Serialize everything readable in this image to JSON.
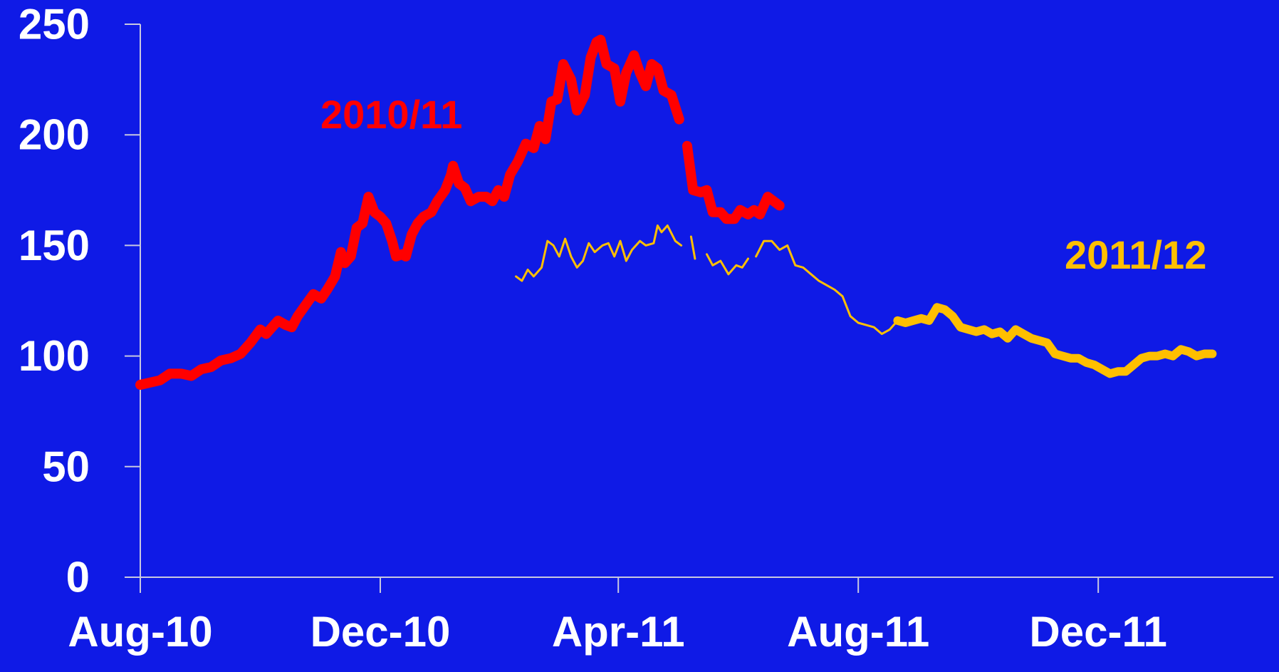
{
  "chart_data": {
    "type": "line",
    "title": "",
    "xlabel": "",
    "ylabel": "",
    "ylim": [
      0,
      250
    ],
    "yticks": [
      0,
      50,
      100,
      150,
      200,
      250
    ],
    "xlim": [
      "2010-08-01",
      "2012-02-28"
    ],
    "xticks": [
      {
        "date": "2010-08-01",
        "label": "Aug-10"
      },
      {
        "date": "2010-12-01",
        "label": "Dec-10"
      },
      {
        "date": "2011-04-01",
        "label": "Apr-11"
      },
      {
        "date": "2011-08-01",
        "label": "Aug-11"
      },
      {
        "date": "2011-12-01",
        "label": "Dec-11"
      }
    ],
    "grid": false,
    "background_color": "#0f1ae6",
    "axis_color": "#c8c8e0",
    "series": [
      {
        "name": "2010/11",
        "color": "#ff0000",
        "segments": [
          [
            [
              "2010-08-01",
              87
            ],
            [
              "2010-08-06",
              88
            ],
            [
              "2010-08-11",
              89
            ],
            [
              "2010-08-16",
              92
            ],
            [
              "2010-08-22",
              92
            ],
            [
              "2010-08-27",
              91
            ],
            [
              "2010-09-01",
              94
            ],
            [
              "2010-09-06",
              95
            ],
            [
              "2010-09-11",
              98
            ],
            [
              "2010-09-16",
              99
            ],
            [
              "2010-09-21",
              101
            ],
            [
              "2010-09-26",
              106
            ],
            [
              "2010-10-01",
              112
            ],
            [
              "2010-10-04",
              110
            ],
            [
              "2010-10-07",
              113
            ],
            [
              "2010-10-10",
              116
            ],
            [
              "2010-10-14",
              114
            ],
            [
              "2010-10-17",
              113
            ],
            [
              "2010-10-20",
              118
            ],
            [
              "2010-10-24",
              123
            ],
            [
              "2010-10-28",
              128
            ],
            [
              "2010-11-01",
              126
            ],
            [
              "2010-11-04",
              130
            ],
            [
              "2010-11-08",
              136
            ],
            [
              "2010-11-11",
              147
            ],
            [
              "2010-11-13",
              142
            ],
            [
              "2010-11-16",
              145
            ],
            [
              "2010-11-19",
              158
            ],
            [
              "2010-11-22",
              160
            ],
            [
              "2010-11-25",
              172
            ],
            [
              "2010-11-28",
              165
            ],
            [
              "2010-12-01",
              163
            ],
            [
              "2010-12-04",
              160
            ],
            [
              "2010-12-07",
              152
            ],
            [
              "2010-12-09",
              145
            ],
            [
              "2010-12-12",
              146
            ],
            [
              "2010-12-14",
              145
            ],
            [
              "2010-12-17",
              155
            ],
            [
              "2010-12-20",
              160
            ],
            [
              "2010-12-23",
              163
            ],
            [
              "2010-12-27",
              165
            ],
            [
              "2010-12-30",
              170
            ],
            [
              "2011-01-03",
              175
            ],
            [
              "2011-01-06",
              182
            ],
            [
              "2011-01-07",
              186
            ],
            [
              "2011-01-10",
              178
            ],
            [
              "2011-01-13",
              176
            ],
            [
              "2011-01-16",
              170
            ],
            [
              "2011-01-20",
              172
            ],
            [
              "2011-01-24",
              172
            ],
            [
              "2011-01-27",
              170
            ],
            [
              "2011-01-30",
              175
            ],
            [
              "2011-02-02",
              172
            ],
            [
              "2011-02-05",
              182
            ],
            [
              "2011-02-09",
              188
            ],
            [
              "2011-02-13",
              196
            ],
            [
              "2011-02-17",
              194
            ],
            [
              "2011-02-20",
              204
            ],
            [
              "2011-02-23",
              198
            ],
            [
              "2011-02-26",
              215
            ],
            [
              "2011-03-01",
              216
            ],
            [
              "2011-03-04",
              232
            ],
            [
              "2011-03-08",
              225
            ],
            [
              "2011-03-11",
              211
            ],
            [
              "2011-03-15",
              218
            ],
            [
              "2011-03-18",
              235
            ],
            [
              "2011-03-21",
              242
            ],
            [
              "2011-03-23",
              243
            ],
            [
              "2011-03-26",
              232
            ],
            [
              "2011-03-30",
              230
            ],
            [
              "2011-04-02",
              215
            ],
            [
              "2011-04-05",
              228
            ],
            [
              "2011-04-09",
              236
            ],
            [
              "2011-04-12",
              228
            ],
            [
              "2011-04-15",
              222
            ],
            [
              "2011-04-18",
              232
            ],
            [
              "2011-04-21",
              230
            ],
            [
              "2011-04-24",
              220
            ],
            [
              "2011-04-28",
              218
            ],
            [
              "2011-05-02",
              207
            ]
          ],
          [
            [
              "2011-05-06",
              195
            ],
            [
              "2011-05-09",
              175
            ],
            [
              "2011-05-13",
              174
            ],
            [
              "2011-05-16",
              175
            ],
            [
              "2011-05-19",
              165
            ],
            [
              "2011-05-23",
              165
            ],
            [
              "2011-05-26",
              162
            ],
            [
              "2011-05-30",
              162
            ],
            [
              "2011-06-02",
              166
            ],
            [
              "2011-06-06",
              164
            ],
            [
              "2011-06-09",
              166
            ],
            [
              "2011-06-12",
              164
            ],
            [
              "2011-06-16",
              172
            ],
            [
              "2011-06-19",
              170
            ],
            [
              "2011-06-22",
              168
            ]
          ]
        ]
      },
      {
        "name": "2011/12",
        "color": "#ffbf00",
        "segments": [
          [
            [
              "2011-02-08",
              136
            ],
            [
              "2011-02-11",
              134
            ],
            [
              "2011-02-14",
              139
            ],
            [
              "2011-02-17",
              136
            ],
            [
              "2011-02-21",
              140
            ],
            [
              "2011-02-24",
              152
            ],
            [
              "2011-02-27",
              150
            ],
            [
              "2011-03-02",
              145
            ],
            [
              "2011-03-05",
              153
            ],
            [
              "2011-03-08",
              145
            ],
            [
              "2011-03-11",
              140
            ],
            [
              "2011-03-14",
              143
            ],
            [
              "2011-03-17",
              151
            ],
            [
              "2011-03-20",
              147
            ],
            [
              "2011-03-24",
              150
            ],
            [
              "2011-03-27",
              151
            ],
            [
              "2011-03-30",
              145
            ],
            [
              "2011-04-02",
              152
            ],
            [
              "2011-04-05",
              143
            ],
            [
              "2011-04-08",
              148
            ],
            [
              "2011-04-12",
              152
            ],
            [
              "2011-04-15",
              150
            ],
            [
              "2011-04-19",
              151
            ],
            [
              "2011-04-21",
              159
            ],
            [
              "2011-04-23",
              156
            ],
            [
              "2011-04-26",
              159
            ],
            [
              "2011-04-30",
              152
            ],
            [
              "2011-05-03",
              150
            ]
          ],
          [
            [
              "2011-05-08",
              154
            ],
            [
              "2011-05-10",
              144
            ]
          ],
          [
            [
              "2011-05-16",
              146
            ],
            [
              "2011-05-19",
              141
            ],
            [
              "2011-05-23",
              143
            ],
            [
              "2011-05-27",
              137
            ],
            [
              "2011-05-31",
              141
            ],
            [
              "2011-06-03",
              140
            ],
            [
              "2011-06-06",
              144
            ]
          ],
          [
            [
              "2011-06-10",
              145
            ],
            [
              "2011-06-14",
              152
            ],
            [
              "2011-06-18",
              152
            ],
            [
              "2011-06-22",
              148
            ],
            [
              "2011-06-26",
              150
            ],
            [
              "2011-06-30",
              141
            ],
            [
              "2011-07-04",
              140
            ],
            [
              "2011-07-08",
              137
            ],
            [
              "2011-07-12",
              134
            ],
            [
              "2011-07-16",
              132
            ],
            [
              "2011-07-20",
              130
            ],
            [
              "2011-07-24",
              127
            ],
            [
              "2011-07-28",
              118
            ],
            [
              "2011-08-01",
              115
            ],
            [
              "2011-08-05",
              114
            ],
            [
              "2011-08-09",
              113
            ],
            [
              "2011-08-13",
              110
            ],
            [
              "2011-08-17",
              112
            ],
            [
              "2011-08-21",
              116
            ],
            [
              "2011-08-25",
              115
            ],
            [
              "2011-08-29",
              116
            ],
            [
              "2011-09-02",
              117
            ],
            [
              "2011-09-06",
              116
            ],
            [
              "2011-09-10",
              122
            ],
            [
              "2011-09-14",
              121
            ],
            [
              "2011-09-18",
              118
            ],
            [
              "2011-09-22",
              113
            ],
            [
              "2011-09-26",
              112
            ],
            [
              "2011-09-30",
              111
            ],
            [
              "2011-10-04",
              112
            ],
            [
              "2011-10-08",
              110
            ],
            [
              "2011-10-12",
              111
            ],
            [
              "2011-10-16",
              108
            ],
            [
              "2011-10-20",
              112
            ],
            [
              "2011-10-24",
              110
            ],
            [
              "2011-10-28",
              108
            ],
            [
              "2011-11-01",
              107
            ],
            [
              "2011-11-05",
              106
            ],
            [
              "2011-11-09",
              101
            ],
            [
              "2011-11-13",
              100
            ],
            [
              "2011-11-17",
              99
            ],
            [
              "2011-11-21",
              99
            ],
            [
              "2011-11-25",
              97
            ],
            [
              "2011-11-29",
              96
            ],
            [
              "2011-12-03",
              94
            ],
            [
              "2011-12-07",
              92
            ],
            [
              "2011-12-11",
              93
            ],
            [
              "2011-12-15",
              93
            ],
            [
              "2011-12-19",
              96
            ],
            [
              "2011-12-23",
              99
            ],
            [
              "2011-12-27",
              100
            ],
            [
              "2011-12-31",
              100
            ],
            [
              "2012-01-04",
              101
            ],
            [
              "2012-01-08",
              100
            ],
            [
              "2012-01-12",
              103
            ],
            [
              "2012-01-16",
              102
            ],
            [
              "2012-01-20",
              100
            ],
            [
              "2012-01-24",
              101
            ],
            [
              "2012-01-28",
              101
            ]
          ]
        ]
      }
    ],
    "annotations": [
      {
        "text": "2010/11",
        "series": "2010/11",
        "color": "#ff0000"
      },
      {
        "text": "2011/12",
        "series": "2011/12",
        "color": "#ffbf00"
      }
    ]
  }
}
